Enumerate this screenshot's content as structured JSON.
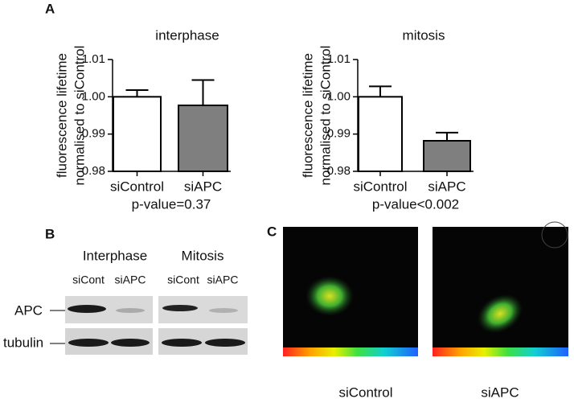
{
  "panels": {
    "a": "A",
    "b": "B",
    "c": "C"
  },
  "chart_data": [
    {
      "type": "bar",
      "title": "interphase",
      "ylabel": [
        "fluorescence lifetime",
        "normalised to siControl"
      ],
      "categories": [
        "siControl",
        "siAPC"
      ],
      "values": [
        1.0,
        0.9977
      ],
      "errors": [
        0.0018,
        0.0068
      ],
      "colors": [
        "#ffffff",
        "#7f7f7f"
      ],
      "ylim": [
        0.98,
        1.01
      ],
      "yticks": [
        0.98,
        0.99,
        {
          "value": 1.0,
          "label": "1.00"
        },
        1.01
      ],
      "annotation": "p-value=0.37"
    },
    {
      "type": "bar",
      "title": "mitosis",
      "ylabel": [
        "fluorescence lifetime",
        "normalised to siControl"
      ],
      "categories": [
        "siControl",
        "siAPC"
      ],
      "values": [
        1.0,
        0.9882
      ],
      "errors": [
        0.0028,
        0.0022
      ],
      "colors": [
        "#ffffff",
        "#7f7f7f"
      ],
      "ylim": [
        0.98,
        1.01
      ],
      "yticks": [
        0.98,
        0.99,
        {
          "value": 1.0,
          "label": "1.00"
        },
        1.01
      ],
      "annotation": "p-value<0.002"
    }
  ],
  "blot": {
    "conditions": [
      "Interphase",
      "Mitosis"
    ],
    "lanes": [
      "siCont",
      "siAPC",
      "siCont",
      "siAPC"
    ],
    "rows": [
      "APC",
      "tubulin"
    ]
  },
  "images": {
    "captions": [
      "siControl",
      "siAPC"
    ]
  }
}
